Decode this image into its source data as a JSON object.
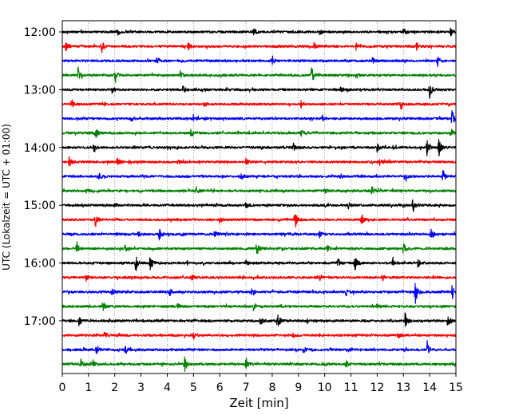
{
  "chart_data": {
    "type": "line",
    "title": "",
    "xlabel": "Zeit  [min]",
    "ylabel": "UTC (Lokalzeit = UTC + 01:00)",
    "xlim": [
      0,
      15
    ],
    "x_ticks": [
      0,
      1,
      2,
      3,
      4,
      5,
      6,
      7,
      8,
      9,
      10,
      11,
      12,
      13,
      14,
      15
    ],
    "y_tick_labels": [
      "12:00",
      "13:00",
      "14:00",
      "15:00",
      "16:00",
      "17:00"
    ],
    "grid": "vertical-dotted",
    "trace_interval_minutes": 15,
    "trace_colors": [
      "#000000",
      "#ff0000",
      "#0000ff",
      "#008000"
    ],
    "traces": [
      {
        "start": "12:00",
        "color": "#000000",
        "events": [
          [
            2.1,
            4
          ],
          [
            7.3,
            5
          ],
          [
            9.8,
            4
          ],
          [
            13.0,
            5
          ],
          [
            14.8,
            5
          ]
        ]
      },
      {
        "start": "12:15",
        "color": "#ff0000",
        "events": [
          [
            0.15,
            9
          ],
          [
            1.5,
            8
          ],
          [
            4.8,
            5
          ],
          [
            9.6,
            5
          ],
          [
            11.2,
            5
          ],
          [
            13.5,
            5
          ]
        ]
      },
      {
        "start": "12:30",
        "color": "#0000ff",
        "events": [
          [
            3.6,
            4
          ],
          [
            8.0,
            5
          ],
          [
            11.8,
            5
          ],
          [
            14.3,
            9
          ]
        ]
      },
      {
        "start": "12:45",
        "color": "#008000",
        "events": [
          [
            0.6,
            9
          ],
          [
            2.0,
            9
          ],
          [
            4.5,
            5
          ],
          [
            9.5,
            13
          ],
          [
            11.2,
            5
          ]
        ]
      },
      {
        "start": "13:00",
        "color": "#000000",
        "events": [
          [
            1.9,
            4
          ],
          [
            4.6,
            5
          ],
          [
            10.6,
            4
          ],
          [
            14.0,
            11
          ]
        ]
      },
      {
        "start": "13:15",
        "color": "#ff0000",
        "events": [
          [
            0.35,
            8
          ],
          [
            5.4,
            4
          ],
          [
            9.1,
            4
          ],
          [
            12.9,
            5
          ]
        ]
      },
      {
        "start": "13:30",
        "color": "#0000ff",
        "events": [
          [
            2.6,
            4
          ],
          [
            5.0,
            5
          ],
          [
            9.9,
            4
          ],
          [
            14.85,
            11
          ]
        ]
      },
      {
        "start": "13:45",
        "color": "#008000",
        "events": [
          [
            1.25,
            8
          ],
          [
            4.9,
            5
          ],
          [
            9.1,
            4
          ],
          [
            14.8,
            5
          ]
        ]
      },
      {
        "start": "14:00",
        "color": "#000000",
        "events": [
          [
            1.2,
            4
          ],
          [
            8.8,
            5
          ],
          [
            12.0,
            5
          ],
          [
            13.9,
            12
          ],
          [
            14.35,
            12
          ]
        ]
      },
      {
        "start": "14:15",
        "color": "#ff0000",
        "events": [
          [
            0.25,
            8
          ],
          [
            2.1,
            5
          ],
          [
            4.4,
            4
          ],
          [
            7.0,
            4
          ],
          [
            12.1,
            5
          ]
        ]
      },
      {
        "start": "14:30",
        "color": "#0000ff",
        "events": [
          [
            1.4,
            4
          ],
          [
            6.8,
            5
          ],
          [
            10.6,
            5
          ],
          [
            13.05,
            8
          ],
          [
            14.5,
            9
          ]
        ]
      },
      {
        "start": "14:45",
        "color": "#008000",
        "events": [
          [
            0.9,
            3
          ],
          [
            5.1,
            5
          ],
          [
            10.0,
            4
          ],
          [
            11.8,
            5
          ]
        ]
      },
      {
        "start": "15:00",
        "color": "#000000",
        "events": [
          [
            2.0,
            4
          ],
          [
            7.0,
            4
          ],
          [
            10.9,
            4
          ],
          [
            13.35,
            8
          ]
        ]
      },
      {
        "start": "15:15",
        "color": "#ff0000",
        "events": [
          [
            1.25,
            8
          ],
          [
            6.0,
            4
          ],
          [
            8.85,
            15
          ],
          [
            11.4,
            5
          ]
        ]
      },
      {
        "start": "15:30",
        "color": "#0000ff",
        "events": [
          [
            2.9,
            4
          ],
          [
            3.7,
            7
          ],
          [
            5.8,
            5
          ],
          [
            9.8,
            5
          ],
          [
            14.05,
            12
          ]
        ]
      },
      {
        "start": "15:45",
        "color": "#008000",
        "events": [
          [
            0.55,
            9
          ],
          [
            2.4,
            4
          ],
          [
            7.4,
            10
          ],
          [
            10.1,
            4
          ],
          [
            13.0,
            7
          ]
        ]
      },
      {
        "start": "16:00",
        "color": "#000000",
        "events": [
          [
            2.8,
            11
          ],
          [
            3.35,
            10
          ],
          [
            7.0,
            4
          ],
          [
            10.5,
            6
          ],
          [
            11.15,
            11
          ],
          [
            12.6,
            7
          ],
          [
            13.55,
            5
          ]
        ]
      },
      {
        "start": "16:15",
        "color": "#ff0000",
        "events": [
          [
            0.9,
            4
          ],
          [
            4.9,
            4
          ],
          [
            9.8,
            6
          ],
          [
            12.2,
            4
          ]
        ]
      },
      {
        "start": "16:30",
        "color": "#0000ff",
        "events": [
          [
            1.9,
            4
          ],
          [
            4.1,
            4
          ],
          [
            7.2,
            4
          ],
          [
            10.8,
            5
          ],
          [
            13.45,
            15
          ],
          [
            14.85,
            10
          ]
        ]
      },
      {
        "start": "16:45",
        "color": "#008000",
        "events": [
          [
            1.55,
            6
          ],
          [
            4.4,
            4
          ],
          [
            7.3,
            4
          ],
          [
            12.0,
            4
          ]
        ]
      },
      {
        "start": "17:00",
        "color": "#000000",
        "events": [
          [
            0.65,
            6
          ],
          [
            7.55,
            6
          ],
          [
            8.2,
            11
          ],
          [
            9.3,
            4
          ],
          [
            13.05,
            12
          ],
          [
            14.7,
            10
          ]
        ]
      },
      {
        "start": "17:15",
        "color": "#ff0000",
        "events": [
          [
            1.6,
            4
          ],
          [
            5.0,
            4
          ],
          [
            8.8,
            4
          ],
          [
            12.8,
            4
          ]
        ]
      },
      {
        "start": "17:30",
        "color": "#0000ff",
        "events": [
          [
            1.3,
            5
          ],
          [
            2.4,
            6
          ],
          [
            9.2,
            5
          ],
          [
            13.9,
            13
          ]
        ]
      },
      {
        "start": "17:45",
        "color": "#008000",
        "events": [
          [
            0.7,
            6
          ],
          [
            1.15,
            6
          ],
          [
            4.65,
            11
          ],
          [
            7.0,
            8
          ],
          [
            10.8,
            5
          ]
        ]
      }
    ]
  }
}
